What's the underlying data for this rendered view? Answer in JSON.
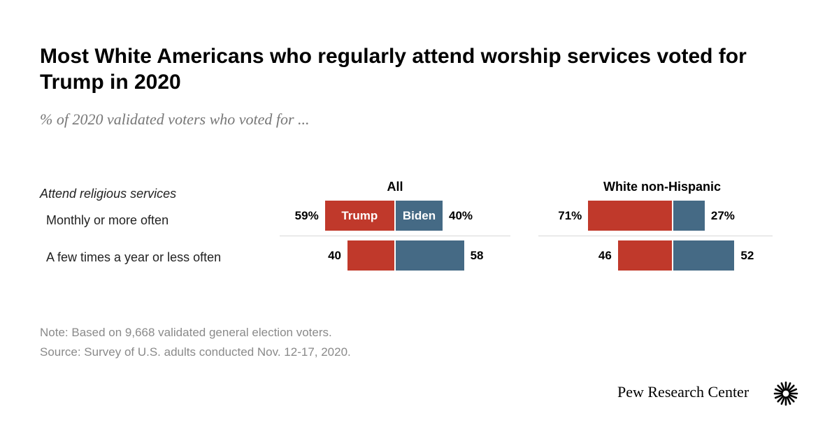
{
  "title": "Most White Americans who regularly attend worship services voted for Trump in 2020",
  "subtitle": "% of 2020 validated voters who voted for ...",
  "row_header": "Attend religious services",
  "note": "Note: Based on 9,668 validated general election voters.",
  "source": "Source: Survey of U.S. adults conducted Nov. 12-17, 2020.",
  "logo": "Pew Research Center",
  "colors": {
    "trump": "#c0392b",
    "biden": "#456a85"
  },
  "chart_data": [
    {
      "type": "bar",
      "title": "All",
      "categories": [
        "Monthly or more often",
        "A few times a year or less often"
      ],
      "series": [
        {
          "name": "Trump",
          "values": [
            59,
            40
          ],
          "labels": [
            "59%",
            "40"
          ]
        },
        {
          "name": "Biden",
          "values": [
            40,
            58
          ],
          "labels": [
            "40%",
            "58"
          ]
        }
      ]
    },
    {
      "type": "bar",
      "title": "White non-Hispanic",
      "categories": [
        "Monthly or more often",
        "A few times a year or less often"
      ],
      "series": [
        {
          "name": "Trump",
          "values": [
            71,
            46
          ],
          "labels": [
            "71%",
            "46"
          ]
        },
        {
          "name": "Biden",
          "values": [
            27,
            52
          ],
          "labels": [
            "27%",
            "52"
          ]
        }
      ]
    }
  ]
}
